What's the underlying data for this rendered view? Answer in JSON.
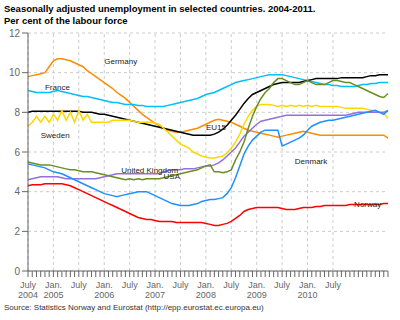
{
  "chart_data": {
    "type": "line",
    "title": "Seasonally adjusted unemployment in selected countries. 2004-2011.",
    "subtitle": "Per cent of the labour force",
    "source": "Source: Statistics Norway and Eurostat (http://epp.eurostat.ec.europa.eu)",
    "grid": true,
    "ylim": [
      0,
      12
    ],
    "yticks": [
      0,
      2,
      4,
      6,
      8,
      10,
      12
    ],
    "categories": [
      "July\n2004",
      null,
      null,
      null,
      null,
      null,
      "Jan.\n2005",
      null,
      null,
      null,
      null,
      null,
      "July",
      null,
      null,
      null,
      null,
      null,
      "Jan.\n2006",
      null,
      null,
      null,
      null,
      null,
      "July",
      null,
      null,
      null,
      null,
      null,
      "Jan.\n2007",
      null,
      null,
      null,
      null,
      null,
      "July",
      null,
      null,
      null,
      null,
      null,
      "Jan.\n2008",
      null,
      null,
      null,
      null,
      null,
      "July",
      null,
      null,
      null,
      null,
      null,
      "Jan.\n2009",
      null,
      null,
      null,
      null,
      null,
      "July",
      null,
      null,
      null,
      null,
      null,
      "Jan.\n2010",
      null,
      null,
      null,
      null,
      null,
      "July",
      null,
      null,
      null,
      null,
      null,
      null,
      null,
      null,
      null,
      null,
      null,
      null,
      null
    ],
    "series": [
      {
        "name": "Germany",
        "color": "#FF8C00",
        "values": [
          9.8,
          9.85,
          9.9,
          9.95,
          10.0,
          10.3,
          10.6,
          10.7,
          10.7,
          10.65,
          10.6,
          10.5,
          10.4,
          10.3,
          10.1,
          9.95,
          9.8,
          9.65,
          9.5,
          9.35,
          9.2,
          9.0,
          8.85,
          8.7,
          8.5,
          8.3,
          8.1,
          7.9,
          7.75,
          7.6,
          7.45,
          7.3,
          7.2,
          7.1,
          7.05,
          7.0,
          7.0,
          7.05,
          7.1,
          7.15,
          7.2,
          7.3,
          7.4,
          7.5,
          7.6,
          7.65,
          7.6,
          7.55,
          7.5,
          7.4,
          7.3,
          7.2,
          7.1,
          7.05,
          7.0,
          6.95,
          6.9,
          6.85,
          6.8,
          6.75,
          6.8,
          6.85,
          6.9,
          6.95,
          7.0,
          7.05,
          7.0,
          6.95,
          6.9,
          6.85,
          6.85,
          6.85,
          6.85,
          6.85,
          6.85,
          6.85,
          6.85,
          6.85,
          6.85,
          6.85,
          6.85,
          6.85,
          6.85,
          6.85,
          6.85,
          6.7
        ]
      },
      {
        "name": "France",
        "color": "#00BFFF",
        "values": [
          9.1,
          9.05,
          9.0,
          9.0,
          9.0,
          9.0,
          9.05,
          9.1,
          9.05,
          9.0,
          8.95,
          8.9,
          8.85,
          8.8,
          8.8,
          8.75,
          8.7,
          8.65,
          8.6,
          8.55,
          8.5,
          8.5,
          8.45,
          8.4,
          8.4,
          8.4,
          8.35,
          8.35,
          8.3,
          8.3,
          8.3,
          8.3,
          8.3,
          8.35,
          8.4,
          8.45,
          8.5,
          8.55,
          8.6,
          8.65,
          8.7,
          8.8,
          8.9,
          8.95,
          9.0,
          9.1,
          9.2,
          9.3,
          9.4,
          9.5,
          9.55,
          9.6,
          9.65,
          9.7,
          9.75,
          9.8,
          9.85,
          9.9,
          9.9,
          9.9,
          9.9,
          9.85,
          9.8,
          9.75,
          9.7,
          9.65,
          9.6,
          9.55,
          9.5,
          9.45,
          9.4,
          9.4,
          9.35,
          9.35,
          9.3,
          9.3,
          9.3,
          9.3,
          9.35,
          9.4,
          9.4,
          9.45,
          9.45,
          9.5,
          9.5,
          9.5
        ]
      },
      {
        "name": "EU15",
        "color": "#000000",
        "values": [
          8.0,
          8.05,
          8.05,
          8.05,
          8.05,
          8.05,
          8.05,
          8.05,
          8.05,
          8.05,
          8.05,
          8.05,
          8.05,
          8.0,
          8.0,
          8.0,
          7.95,
          7.9,
          7.9,
          7.85,
          7.8,
          7.75,
          7.7,
          7.65,
          7.6,
          7.55,
          7.5,
          7.45,
          7.4,
          7.35,
          7.3,
          7.25,
          7.2,
          7.15,
          7.1,
          7.05,
          7.0,
          6.95,
          6.9,
          6.85,
          6.85,
          6.85,
          6.85,
          6.85,
          6.9,
          7.0,
          7.15,
          7.35,
          7.6,
          7.85,
          8.15,
          8.45,
          8.7,
          8.9,
          9.0,
          9.1,
          9.2,
          9.3,
          9.4,
          9.45,
          9.5,
          9.5,
          9.5,
          9.5,
          9.5,
          9.55,
          9.6,
          9.65,
          9.7,
          9.7,
          9.7,
          9.7,
          9.7,
          9.7,
          9.75,
          9.75,
          9.75,
          9.75,
          9.75,
          9.75,
          9.8,
          9.85,
          9.85,
          9.9,
          9.9,
          9.9
        ]
      },
      {
        "name": "Sweden",
        "color": "#FFD700",
        "values": [
          7.3,
          7.5,
          7.8,
          7.5,
          7.8,
          7.5,
          7.9,
          7.6,
          8.1,
          7.6,
          8.0,
          7.5,
          8.1,
          7.6,
          7.9,
          7.5,
          7.5,
          7.5,
          7.5,
          7.5,
          7.6,
          7.6,
          7.6,
          7.6,
          7.6,
          7.55,
          7.5,
          7.5,
          7.5,
          7.5,
          7.45,
          7.4,
          7.2,
          7.0,
          6.8,
          6.6,
          6.4,
          6.3,
          6.2,
          6.0,
          5.9,
          5.8,
          5.75,
          5.7,
          5.7,
          5.75,
          5.8,
          5.95,
          6.2,
          6.5,
          6.9,
          7.4,
          7.8,
          8.1,
          8.3,
          8.4,
          8.4,
          8.4,
          8.35,
          8.3,
          8.35,
          8.3,
          8.35,
          8.3,
          8.35,
          8.3,
          8.35,
          8.3,
          8.35,
          8.3,
          8.3,
          8.3,
          8.3,
          8.3,
          8.25,
          8.2,
          8.2,
          8.2,
          8.2,
          8.2,
          8.15,
          8.1,
          8.05,
          8.0,
          7.95,
          7.7
        ]
      },
      {
        "name": "United Kingdom",
        "color": "#9370DB",
        "values": [
          4.6,
          4.65,
          4.7,
          4.75,
          4.75,
          4.75,
          4.75,
          4.75,
          4.7,
          4.65,
          4.65,
          4.65,
          4.65,
          4.65,
          4.65,
          4.65,
          4.65,
          4.7,
          4.75,
          4.8,
          4.85,
          4.9,
          4.9,
          4.9,
          4.9,
          4.9,
          4.9,
          4.9,
          4.9,
          4.9,
          4.9,
          4.9,
          5.0,
          5.05,
          5.1,
          5.1,
          5.1,
          5.15,
          5.15,
          5.15,
          5.2,
          5.25,
          5.3,
          5.3,
          5.35,
          5.45,
          5.6,
          5.8,
          6.0,
          6.2,
          6.5,
          6.8,
          7.0,
          7.2,
          7.4,
          7.55,
          7.6,
          7.65,
          7.7,
          7.75,
          7.8,
          7.85,
          7.85,
          7.85,
          7.85,
          7.85,
          7.85,
          7.85,
          7.85,
          7.85,
          7.85,
          7.85,
          7.85,
          7.85,
          7.85,
          7.85,
          7.9,
          7.95,
          8.0,
          8.0,
          8.0,
          8.0,
          8.0,
          8.0,
          8.0,
          8.1
        ]
      },
      {
        "name": "USA",
        "color": "#6B8E23",
        "values": [
          5.5,
          5.45,
          5.4,
          5.35,
          5.35,
          5.35,
          5.3,
          5.25,
          5.2,
          5.15,
          5.1,
          5.1,
          5.05,
          5.0,
          5.0,
          5.0,
          4.95,
          4.9,
          4.85,
          4.8,
          4.75,
          4.7,
          4.65,
          4.6,
          4.65,
          4.6,
          4.65,
          4.6,
          4.65,
          4.65,
          4.65,
          4.65,
          4.7,
          4.75,
          4.8,
          4.85,
          4.9,
          4.95,
          5.0,
          5.05,
          5.1,
          5.2,
          5.3,
          5.35,
          5.0,
          5.0,
          4.95,
          5.0,
          5.1,
          5.6,
          6.0,
          6.5,
          7.2,
          7.8,
          8.3,
          8.7,
          9.0,
          9.2,
          9.5,
          9.7,
          9.7,
          9.6,
          9.5,
          9.4,
          9.4,
          9.5,
          9.6,
          9.5,
          9.4,
          9.4,
          9.4,
          9.5,
          9.6,
          9.6,
          9.55,
          9.5,
          9.5,
          9.4,
          9.3,
          9.2,
          9.1,
          9.0,
          8.9,
          8.8,
          8.75,
          8.95
        ]
      },
      {
        "name": "Denmark",
        "color": "#1E90FF",
        "values": [
          5.4,
          5.35,
          5.3,
          5.25,
          5.2,
          5.1,
          5.0,
          4.95,
          4.9,
          4.8,
          4.7,
          4.6,
          4.5,
          4.4,
          4.3,
          4.2,
          4.1,
          4.0,
          3.9,
          3.85,
          3.8,
          3.75,
          3.8,
          3.85,
          3.9,
          3.95,
          4.0,
          4.0,
          4.0,
          3.9,
          3.8,
          3.7,
          3.6,
          3.5,
          3.4,
          3.35,
          3.3,
          3.3,
          3.3,
          3.35,
          3.4,
          3.5,
          3.55,
          3.6,
          3.6,
          3.65,
          3.7,
          3.9,
          4.2,
          4.7,
          5.3,
          5.9,
          6.3,
          6.6,
          6.8,
          7.0,
          7.1,
          7.1,
          7.1,
          7.1,
          6.3,
          6.4,
          6.5,
          6.6,
          6.7,
          6.85,
          7.1,
          7.3,
          7.4,
          7.5,
          7.55,
          7.6,
          7.6,
          7.65,
          7.7,
          7.75,
          7.8,
          7.85,
          7.9,
          7.95,
          8.0,
          8.05,
          8.1,
          8.0,
          7.9,
          8.1
        ]
      },
      {
        "name": "Norway",
        "color": "#FF0000",
        "values": [
          4.3,
          4.35,
          4.35,
          4.35,
          4.4,
          4.4,
          4.4,
          4.4,
          4.4,
          4.35,
          4.3,
          4.2,
          4.1,
          4.0,
          3.9,
          3.8,
          3.7,
          3.6,
          3.5,
          3.4,
          3.3,
          3.2,
          3.1,
          3.0,
          2.9,
          2.8,
          2.7,
          2.65,
          2.6,
          2.6,
          2.55,
          2.5,
          2.5,
          2.5,
          2.5,
          2.45,
          2.45,
          2.45,
          2.45,
          2.45,
          2.45,
          2.45,
          2.4,
          2.35,
          2.3,
          2.3,
          2.35,
          2.4,
          2.5,
          2.65,
          2.8,
          3.0,
          3.1,
          3.15,
          3.2,
          3.2,
          3.2,
          3.2,
          3.2,
          3.2,
          3.15,
          3.1,
          3.1,
          3.1,
          3.15,
          3.2,
          3.2,
          3.2,
          3.25,
          3.25,
          3.3,
          3.3,
          3.3,
          3.3,
          3.3,
          3.3,
          3.35,
          3.35,
          3.35,
          3.35,
          3.35,
          3.35,
          3.35,
          3.35,
          3.4,
          3.4
        ]
      }
    ],
    "annotations": [
      {
        "text": "Germany",
        "x": 18,
        "y": 10.55
      },
      {
        "text": "France",
        "x": 4,
        "y": 9.25
      },
      {
        "text": "EU15",
        "x": 42,
        "y": 7.25
      },
      {
        "text": "Sweden",
        "x": 3,
        "y": 6.85
      },
      {
        "text": "United Kingdom",
        "x": 22,
        "y": 5.05
      },
      {
        "text": "USA",
        "x": 32,
        "y": 4.75
      },
      {
        "text": "Denmark",
        "x": 63,
        "y": 5.5
      },
      {
        "text": "Norway",
        "x": 77,
        "y": 3.35
      }
    ]
  }
}
